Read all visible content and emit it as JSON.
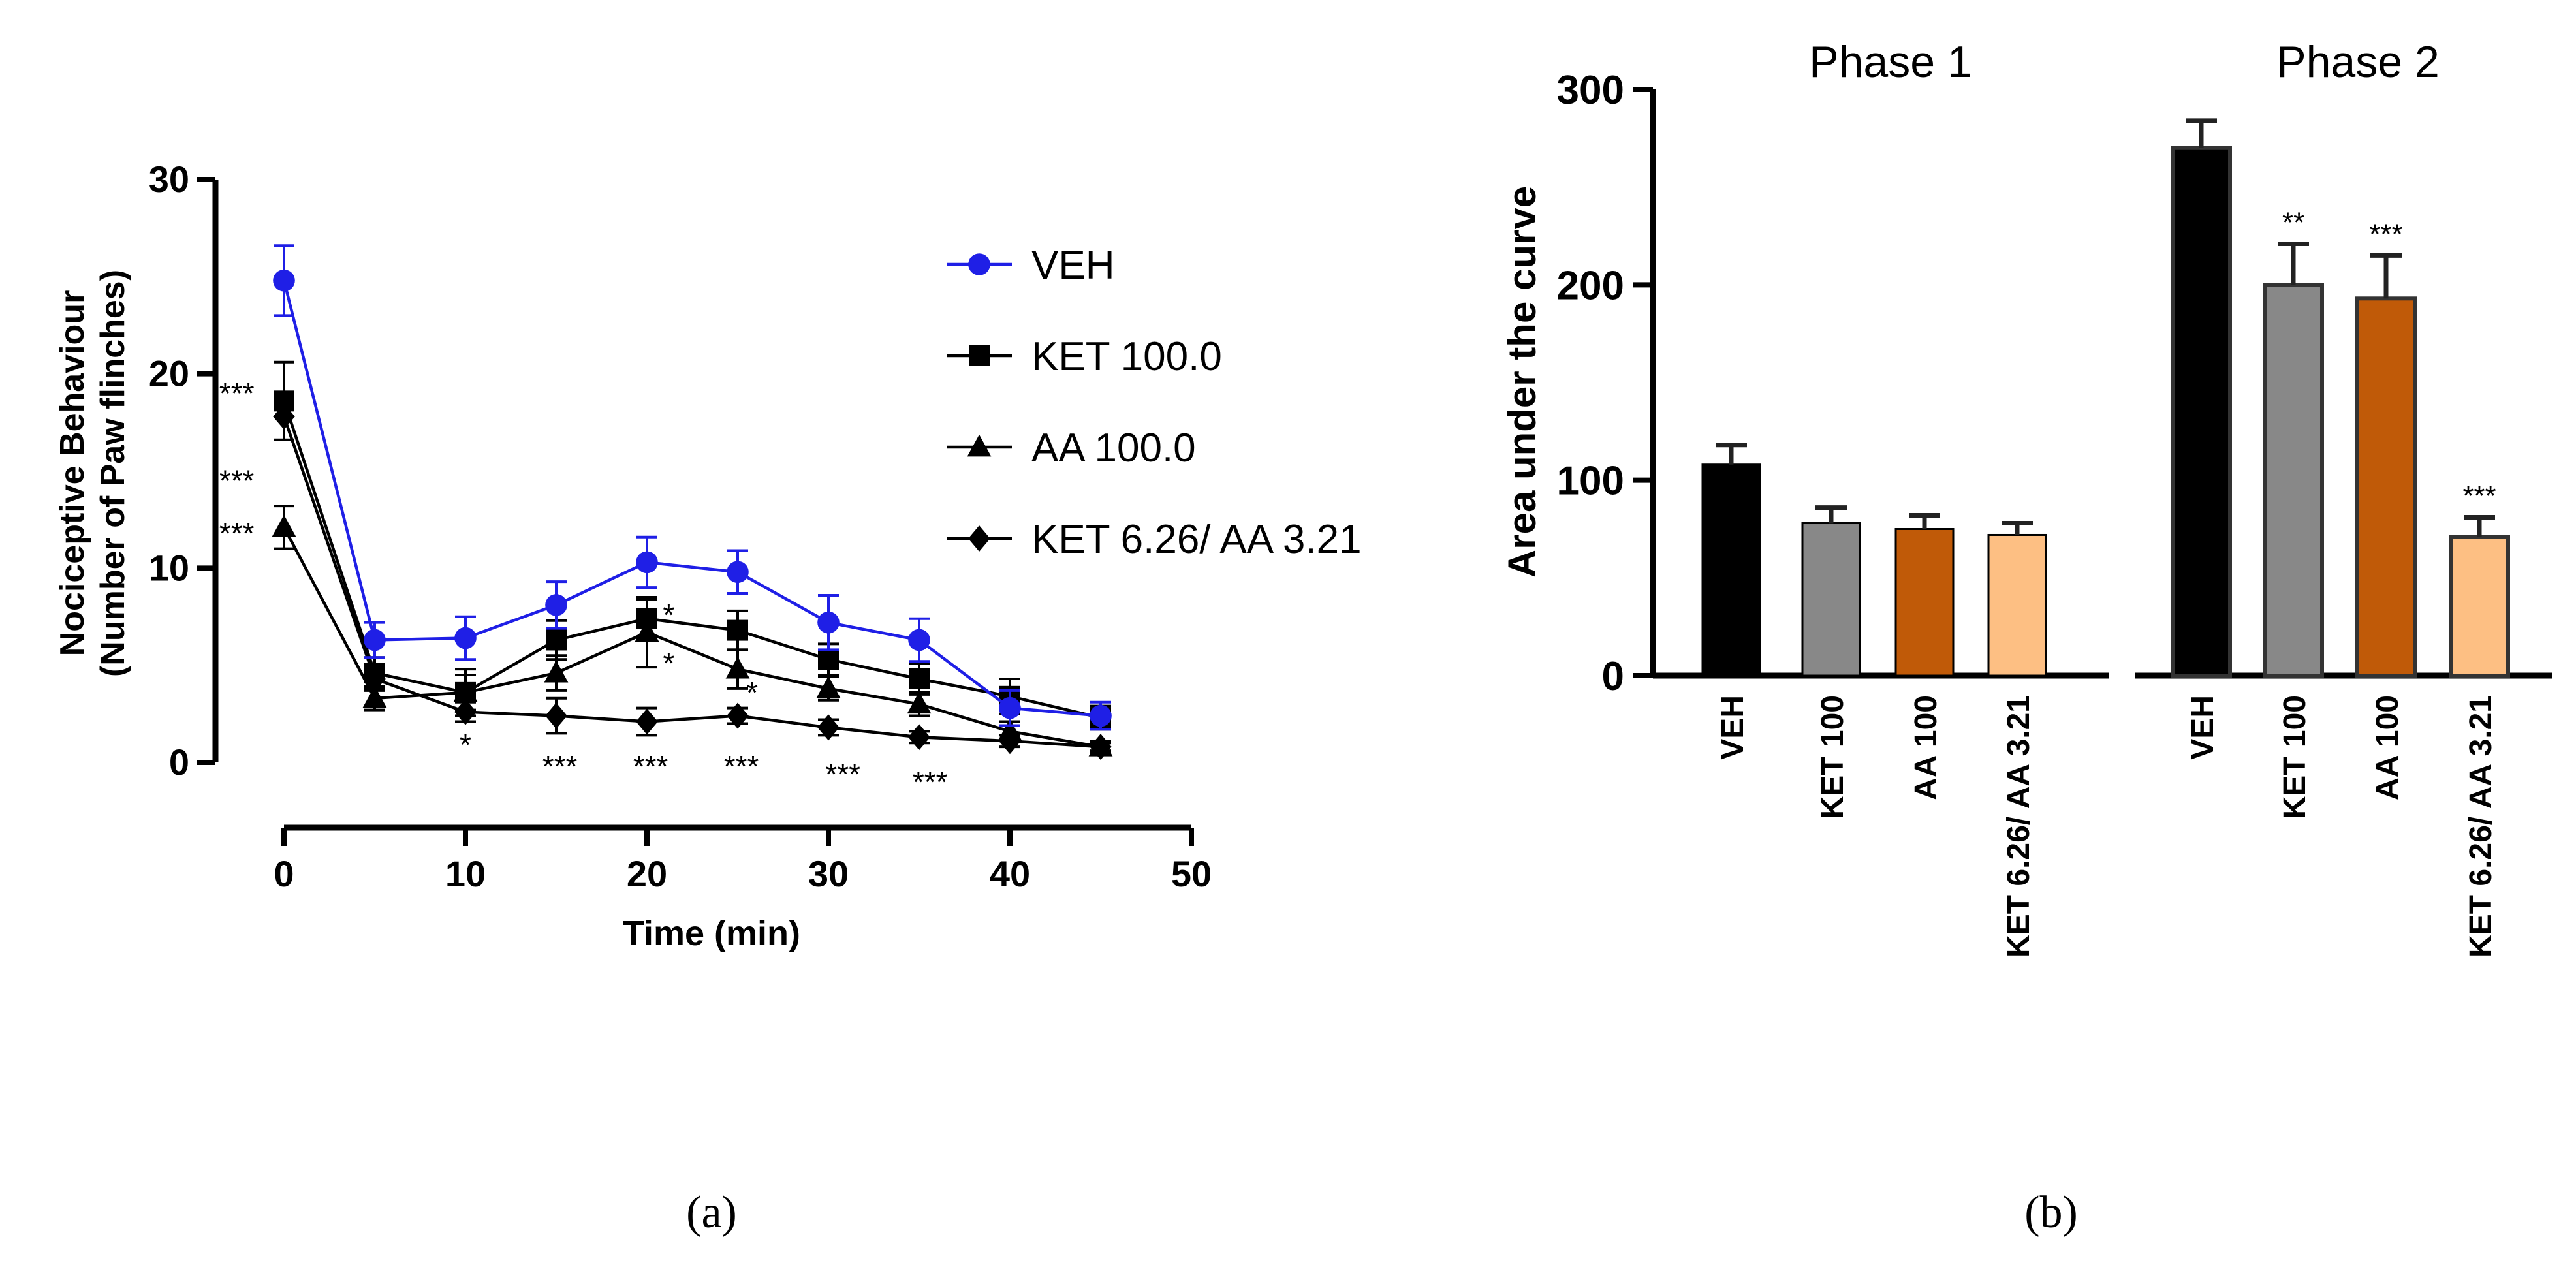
{
  "colors": {
    "veh_line": "#1f1fe6",
    "black": "#000000",
    "ket_bar": "#888888",
    "aa_bar": "#c05a08",
    "combo_bar": "#fdbf83"
  },
  "panel_labels": {
    "a": "(a)",
    "b": "(b)"
  },
  "chart_data": [
    {
      "type": "line",
      "title": "",
      "xlabel": "Time (min)",
      "ylabel": "Nociceptive Behaviour",
      "ylabel2": "(Number of Paw flinches)",
      "xlim": [
        0,
        50
      ],
      "ylim": [
        0,
        30
      ],
      "xticks": [
        "0",
        "10",
        "20",
        "30",
        "40",
        "50"
      ],
      "yticks": [
        "0",
        "10",
        "20",
        "30"
      ],
      "legend_position": "right",
      "x": [
        0,
        5,
        10,
        15,
        20,
        25,
        30,
        35,
        40,
        45
      ],
      "series": [
        {
          "name": "VEH",
          "marker": "circle",
          "color": "#1f1fe6",
          "values": [
            24.8,
            6.3,
            6.4,
            8.1,
            10.3,
            9.8,
            7.2,
            6.3,
            2.8,
            2.4
          ],
          "errors": [
            1.8,
            0.9,
            1.1,
            1.2,
            1.3,
            1.1,
            1.4,
            1.1,
            0.9,
            0.7
          ]
        },
        {
          "name": "KET 100.0",
          "marker": "square",
          "color": "#000000",
          "values": [
            18.6,
            4.6,
            3.6,
            6.3,
            7.4,
            6.8,
            5.3,
            4.3,
            3.4,
            2.3
          ],
          "errors": [
            2.0,
            0.8,
            0.9,
            1.0,
            1.0,
            1.0,
            0.8,
            0.8,
            0.9,
            0.6
          ]
        },
        {
          "name": "AA 100.0",
          "marker": "triangle",
          "color": "#000000",
          "values": [
            12.1,
            3.3,
            3.6,
            4.6,
            6.7,
            4.8,
            3.8,
            3.0,
            1.6,
            0.8
          ],
          "errors": [
            1.1,
            0.6,
            1.2,
            0.9,
            1.8,
            1.0,
            0.6,
            0.6,
            0.5,
            0.3
          ]
        },
        {
          "name": "KET 6.26/ AA 3.21",
          "marker": "diamond",
          "color": "#000000",
          "values": [
            17.8,
            4.3,
            2.6,
            2.4,
            2.1,
            2.4,
            1.8,
            1.3,
            1.1,
            0.8
          ],
          "errors": [
            1.2,
            0.6,
            0.5,
            0.9,
            0.7,
            0.4,
            0.4,
            0.3,
            0.3,
            0.2
          ]
        }
      ],
      "annotations": [
        {
          "text": "***",
          "x": -2.6,
          "y": 19.0
        },
        {
          "text": "***",
          "x": -2.6,
          "y": 14.5
        },
        {
          "text": "***",
          "x": -2.6,
          "y": 11.8
        },
        {
          "text": "*",
          "x": 21.2,
          "y": 7.6
        },
        {
          "text": "*",
          "x": 21.2,
          "y": 5.1
        },
        {
          "text": "*",
          "x": 25.8,
          "y": 3.6
        },
        {
          "text": "*",
          "x": 10.0,
          "y": 0.9
        },
        {
          "text": "***",
          "x": 15.2,
          "y": -0.2
        },
        {
          "text": "***",
          "x": 20.2,
          "y": -0.2
        },
        {
          "text": "***",
          "x": 25.2,
          "y": -0.2
        },
        {
          "text": "***",
          "x": 30.8,
          "y": -0.6
        },
        {
          "text": "***",
          "x": 35.6,
          "y": -1.0
        }
      ]
    },
    {
      "type": "bar",
      "title": "",
      "xlabel": "",
      "ylabel": "Area under the curve",
      "ylim": [
        0,
        300
      ],
      "yticks": [
        "0",
        "100",
        "200",
        "300"
      ],
      "group_labels": [
        "Phase 1",
        "Phase 2"
      ],
      "categories": [
        "VEH",
        "KET 100",
        "AA 100",
        "KET 6.26/ AA 3.21"
      ],
      "groups": [
        {
          "name": "Phase 1",
          "values": [
            108,
            78,
            75,
            72
          ],
          "errors": [
            10,
            8,
            7,
            6
          ],
          "significance": [
            "",
            "",
            "",
            ""
          ]
        },
        {
          "name": "Phase 2",
          "values": [
            270,
            200,
            193,
            71
          ],
          "errors": [
            14,
            21,
            22,
            10
          ],
          "significance": [
            "",
            "**",
            "***",
            "***"
          ]
        }
      ],
      "bar_colors": [
        "#000000",
        "#888888",
        "#c05a08",
        "#fdbf83"
      ]
    }
  ]
}
